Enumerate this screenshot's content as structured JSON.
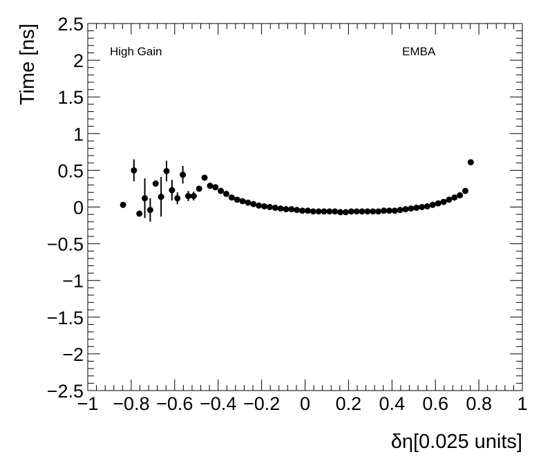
{
  "chart_data": {
    "type": "scatter",
    "xlabel": "δη[0.025 units]",
    "ylabel": "Time [ns]",
    "xlim": [
      -1,
      1
    ],
    "ylim": [
      -2.5,
      2.5
    ],
    "x_ticks": [
      -1,
      -0.8,
      -0.6,
      -0.4,
      -0.2,
      0,
      0.2,
      0.4,
      0.6,
      0.8,
      1
    ],
    "x_tick_labels": [
      "−1",
      "−0.8",
      "−0.6",
      "−0.4",
      "−0.2",
      "0",
      "0.2",
      "0.4",
      "0.6",
      "0.8",
      "1"
    ],
    "y_ticks": [
      -2.5,
      -2,
      -1.5,
      -1,
      -0.5,
      0,
      0.5,
      1,
      1.5,
      2,
      2.5
    ],
    "y_tick_labels": [
      "−2.5",
      "−2",
      "−1.5",
      "−1",
      "−0.5",
      "0",
      "0.5",
      "1",
      "1.5",
      "2",
      "2.5"
    ],
    "grid": false,
    "marker_color": "#000000",
    "annotations": [
      {
        "text": "High Gain",
        "position": "top-left"
      },
      {
        "text": "EMBA",
        "position": "top-right"
      }
    ],
    "points": [
      {
        "x": -0.8375,
        "y": 0.03,
        "err": 0.0
      },
      {
        "x": -0.7875,
        "y": 0.5,
        "err": 0.15
      },
      {
        "x": -0.7625,
        "y": -0.09,
        "err": 0.0
      },
      {
        "x": -0.7375,
        "y": 0.12,
        "err": 0.27
      },
      {
        "x": -0.7125,
        "y": -0.04,
        "err": 0.16
      },
      {
        "x": -0.6875,
        "y": 0.32,
        "err": 0.0
      },
      {
        "x": -0.6625,
        "y": 0.14,
        "err": 0.27
      },
      {
        "x": -0.6375,
        "y": 0.49,
        "err": 0.14
      },
      {
        "x": -0.6125,
        "y": 0.23,
        "err": 0.14
      },
      {
        "x": -0.5875,
        "y": 0.12,
        "err": 0.08
      },
      {
        "x": -0.5625,
        "y": 0.44,
        "err": 0.12
      },
      {
        "x": -0.5375,
        "y": 0.15,
        "err": 0.07
      },
      {
        "x": -0.5125,
        "y": 0.15,
        "err": 0.06
      },
      {
        "x": -0.4875,
        "y": 0.25,
        "err": 0.0
      },
      {
        "x": -0.4625,
        "y": 0.4,
        "err": 0.0
      },
      {
        "x": -0.4375,
        "y": 0.29,
        "err": 0.0
      },
      {
        "x": -0.4125,
        "y": 0.27,
        "err": 0.0
      },
      {
        "x": -0.3875,
        "y": 0.22,
        "err": 0.0
      },
      {
        "x": -0.3625,
        "y": 0.18,
        "err": 0.0
      },
      {
        "x": -0.3375,
        "y": 0.13,
        "err": 0.0
      },
      {
        "x": -0.3125,
        "y": 0.1,
        "err": 0.0
      },
      {
        "x": -0.2875,
        "y": 0.08,
        "err": 0.0
      },
      {
        "x": -0.2625,
        "y": 0.06,
        "err": 0.0
      },
      {
        "x": -0.2375,
        "y": 0.04,
        "err": 0.0
      },
      {
        "x": -0.2125,
        "y": 0.02,
        "err": 0.0
      },
      {
        "x": -0.1875,
        "y": 0.01,
        "err": 0.0
      },
      {
        "x": -0.1625,
        "y": 0.0,
        "err": 0.0
      },
      {
        "x": -0.1375,
        "y": -0.01,
        "err": 0.0
      },
      {
        "x": -0.1125,
        "y": -0.02,
        "err": 0.0
      },
      {
        "x": -0.0875,
        "y": -0.03,
        "err": 0.0
      },
      {
        "x": -0.0625,
        "y": -0.03,
        "err": 0.0
      },
      {
        "x": -0.0375,
        "y": -0.04,
        "err": 0.0
      },
      {
        "x": -0.0125,
        "y": -0.05,
        "err": 0.0
      },
      {
        "x": 0.0125,
        "y": -0.05,
        "err": 0.0
      },
      {
        "x": 0.0375,
        "y": -0.06,
        "err": 0.0
      },
      {
        "x": 0.0625,
        "y": -0.06,
        "err": 0.0
      },
      {
        "x": 0.0875,
        "y": -0.06,
        "err": 0.0
      },
      {
        "x": 0.1125,
        "y": -0.06,
        "err": 0.0
      },
      {
        "x": 0.1375,
        "y": -0.06,
        "err": 0.0
      },
      {
        "x": 0.1625,
        "y": -0.07,
        "err": 0.0
      },
      {
        "x": 0.1875,
        "y": -0.07,
        "err": 0.0
      },
      {
        "x": 0.2125,
        "y": -0.06,
        "err": 0.0
      },
      {
        "x": 0.2375,
        "y": -0.06,
        "err": 0.0
      },
      {
        "x": 0.2625,
        "y": -0.06,
        "err": 0.0
      },
      {
        "x": 0.2875,
        "y": -0.06,
        "err": 0.0
      },
      {
        "x": 0.3125,
        "y": -0.06,
        "err": 0.0
      },
      {
        "x": 0.3375,
        "y": -0.06,
        "err": 0.0
      },
      {
        "x": 0.3625,
        "y": -0.05,
        "err": 0.0
      },
      {
        "x": 0.3875,
        "y": -0.05,
        "err": 0.0
      },
      {
        "x": 0.4125,
        "y": -0.05,
        "err": 0.0
      },
      {
        "x": 0.4375,
        "y": -0.04,
        "err": 0.0
      },
      {
        "x": 0.4625,
        "y": -0.03,
        "err": 0.0
      },
      {
        "x": 0.4875,
        "y": -0.02,
        "err": 0.0
      },
      {
        "x": 0.5125,
        "y": -0.01,
        "err": 0.0
      },
      {
        "x": 0.5375,
        "y": 0.0,
        "err": 0.0
      },
      {
        "x": 0.5625,
        "y": 0.01,
        "err": 0.0
      },
      {
        "x": 0.5875,
        "y": 0.03,
        "err": 0.0
      },
      {
        "x": 0.6125,
        "y": 0.05,
        "err": 0.0
      },
      {
        "x": 0.6375,
        "y": 0.07,
        "err": 0.0
      },
      {
        "x": 0.6625,
        "y": 0.1,
        "err": 0.0
      },
      {
        "x": 0.6875,
        "y": 0.13,
        "err": 0.0
      },
      {
        "x": 0.7125,
        "y": 0.16,
        "err": 0.0
      },
      {
        "x": 0.7375,
        "y": 0.22,
        "err": 0.0
      },
      {
        "x": 0.7625,
        "y": 0.61,
        "err": 0.0
      }
    ]
  }
}
